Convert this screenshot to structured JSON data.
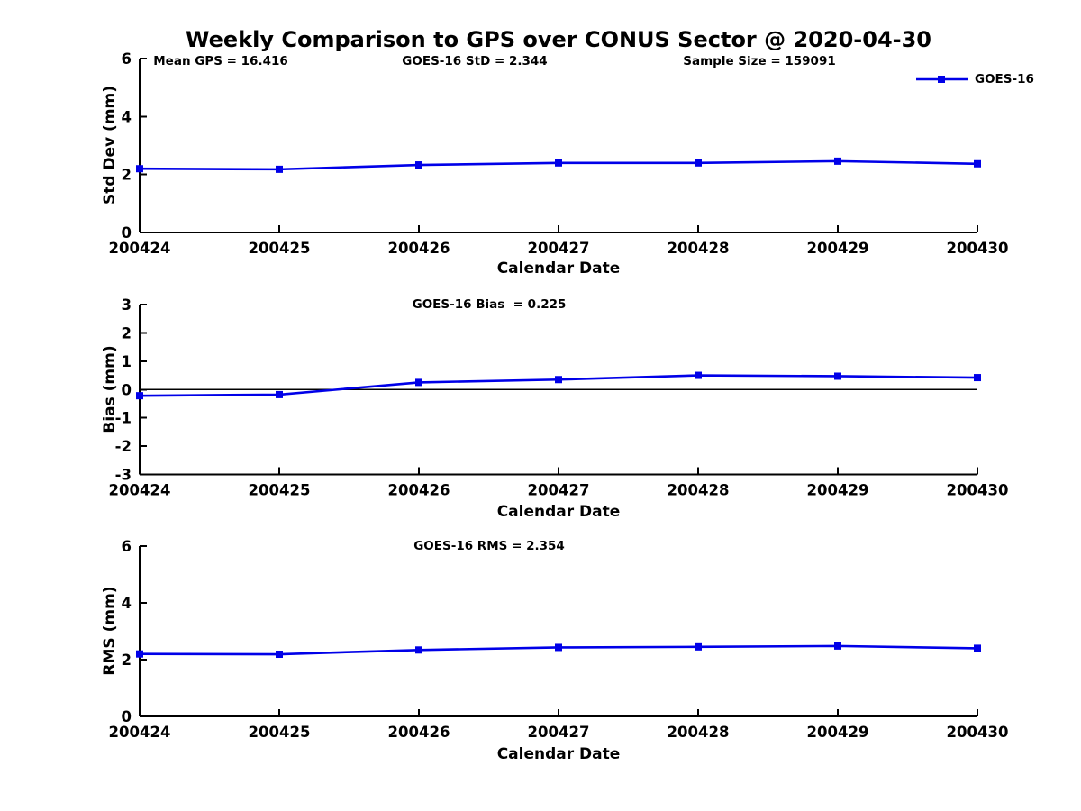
{
  "figure": {
    "title": "Weekly Comparison to GPS over CONUS Sector @ 2020-04-30",
    "stats": {
      "mean_gps": "Mean GPS = 16.416",
      "goes16_std": "GOES-16 StD = 2.344",
      "sample_size": "Sample Size = 159091"
    },
    "legend": {
      "label": "GOES-16"
    }
  },
  "colors": {
    "line": "#0000e8",
    "axis": "#000000",
    "text": "#000000",
    "background": "#ffffff"
  },
  "chart_data": [
    {
      "type": "line",
      "ylabel": "Std Dev (mm)",
      "xlabel": "Calendar Date",
      "categories": [
        "200424",
        "200425",
        "200426",
        "200427",
        "200428",
        "200429",
        "200430"
      ],
      "series": [
        {
          "name": "GOES-16",
          "values": [
            2.2,
            2.18,
            2.33,
            2.4,
            2.4,
            2.46,
            2.37
          ]
        }
      ],
      "ylim": [
        0,
        6
      ],
      "yticks": [
        0,
        2,
        4,
        6
      ],
      "zero_line": false,
      "grid": false,
      "legend_position": "top-right-outside",
      "marker": "square"
    },
    {
      "type": "line",
      "annotation": "GOES-16 Bias  = 0.225",
      "ylabel": "Bias (mm)",
      "xlabel": "Calendar Date",
      "categories": [
        "200424",
        "200425",
        "200426",
        "200427",
        "200428",
        "200429",
        "200430"
      ],
      "series": [
        {
          "name": "GOES-16",
          "values": [
            -0.22,
            -0.18,
            0.25,
            0.35,
            0.5,
            0.47,
            0.42
          ]
        }
      ],
      "ylim": [
        -3,
        3
      ],
      "yticks": [
        -3,
        -2,
        -1,
        0,
        1,
        2,
        3
      ],
      "zero_line": true,
      "grid": false,
      "marker": "square"
    },
    {
      "type": "line",
      "annotation": "GOES-16 RMS = 2.354",
      "ylabel": "RMS (mm)",
      "xlabel": "Calendar Date",
      "categories": [
        "200424",
        "200425",
        "200426",
        "200427",
        "200428",
        "200429",
        "200430"
      ],
      "series": [
        {
          "name": "GOES-16",
          "values": [
            2.2,
            2.19,
            2.34,
            2.43,
            2.45,
            2.48,
            2.4
          ]
        }
      ],
      "ylim": [
        0,
        6
      ],
      "yticks": [
        0,
        2,
        4,
        6
      ],
      "zero_line": false,
      "grid": false,
      "marker": "square"
    }
  ]
}
